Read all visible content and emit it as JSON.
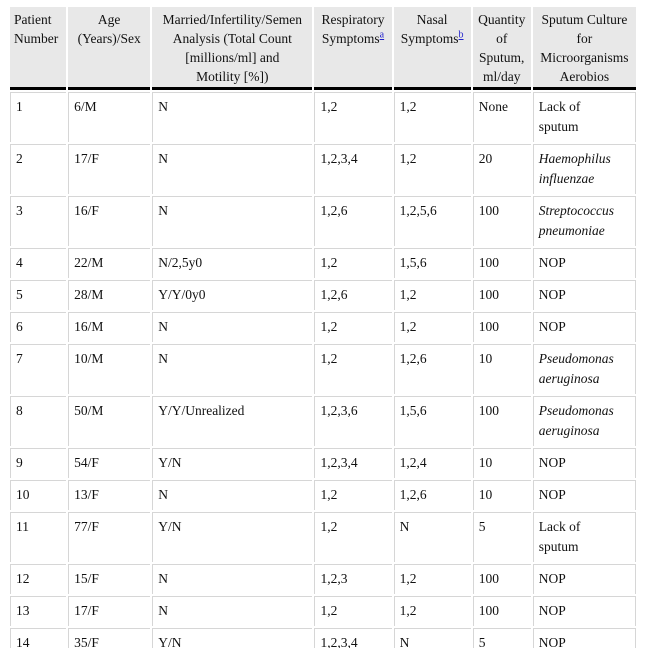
{
  "colors": {
    "header_bg": "#e8e8e8",
    "rule_light": "#d6d6d6",
    "rule_heavy": "#000000",
    "footnote_link_blue": "#2222cc"
  },
  "table": {
    "columns": [
      {
        "key": "patient",
        "label": "Patient\nNumber"
      },
      {
        "key": "age_sex",
        "label": "Age\n(Years)/Sex"
      },
      {
        "key": "married",
        "label": "Married/Infertility/Semen\nAnalysis (Total Count\n[millions/ml] and\nMotility [%])"
      },
      {
        "key": "respiratory",
        "label": "Respiratory\nSymptoms",
        "sup": "a"
      },
      {
        "key": "nasal",
        "label": "Nasal\nSymptoms",
        "sup": "b"
      },
      {
        "key": "quantity",
        "label": "Quantity\nof\nSputum,\nml/day"
      },
      {
        "key": "culture",
        "label": "Sputum Culture\nfor\nMicroorganisms\nAerobios"
      }
    ],
    "rows": [
      {
        "patient": "1",
        "age_sex": "6/M",
        "married": "N",
        "respiratory": "1,2",
        "nasal": "1,2",
        "quantity": "None",
        "culture": "Lack of\nsputum",
        "culture_italic": false
      },
      {
        "patient": "2",
        "age_sex": "17/F",
        "married": "N",
        "respiratory": "1,2,3,4",
        "nasal": "1,2",
        "quantity": "20",
        "culture": "Haemophilus\ninfluenzae",
        "culture_italic": true
      },
      {
        "patient": "3",
        "age_sex": "16/F",
        "married": "N",
        "respiratory": "1,2,6",
        "nasal": "1,2,5,6",
        "quantity": "100",
        "culture": "Streptococcus\npneumoniae",
        "culture_italic": true
      },
      {
        "patient": "4",
        "age_sex": "22/M",
        "married": "N/2,5y0",
        "respiratory": "1,2",
        "nasal": "1,5,6",
        "quantity": "100",
        "culture": "NOP",
        "culture_italic": false
      },
      {
        "patient": "5",
        "age_sex": "28/M",
        "married": "Y/Y/0y0",
        "respiratory": "1,2,6",
        "nasal": "1,2",
        "quantity": "100",
        "culture": "NOP",
        "culture_italic": false
      },
      {
        "patient": "6",
        "age_sex": "16/M",
        "married": "N",
        "respiratory": "1,2",
        "nasal": "1,2",
        "quantity": "100",
        "culture": "NOP",
        "culture_italic": false
      },
      {
        "patient": "7",
        "age_sex": "10/M",
        "married": "N",
        "respiratory": "1,2",
        "nasal": "1,2,6",
        "quantity": "10",
        "culture": "Pseudomonas\naeruginosa",
        "culture_italic": true
      },
      {
        "patient": "8",
        "age_sex": "50/M",
        "married": "Y/Y/Unrealized",
        "respiratory": "1,2,3,6",
        "nasal": "1,5,6",
        "quantity": "100",
        "culture": "Pseudomonas\naeruginosa",
        "culture_italic": true
      },
      {
        "patient": "9",
        "age_sex": "54/F",
        "married": "Y/N",
        "respiratory": "1,2,3,4",
        "nasal": "1,2,4",
        "quantity": "10",
        "culture": "NOP",
        "culture_italic": false
      },
      {
        "patient": "10",
        "age_sex": "13/F",
        "married": "N",
        "respiratory": "1,2",
        "nasal": "1,2,6",
        "quantity": "10",
        "culture": "NOP",
        "culture_italic": false
      },
      {
        "patient": "11",
        "age_sex": "77/F",
        "married": "Y/N",
        "respiratory": "1,2",
        "nasal": "N",
        "quantity": "5",
        "culture": "Lack of\nsputum",
        "culture_italic": false
      },
      {
        "patient": "12",
        "age_sex": "15/F",
        "married": "N",
        "respiratory": "1,2,3",
        "nasal": "1,2",
        "quantity": "100",
        "culture": "NOP",
        "culture_italic": false
      },
      {
        "patient": "13",
        "age_sex": "17/F",
        "married": "N",
        "respiratory": "1,2",
        "nasal": "1,2",
        "quantity": "100",
        "culture": "NOP",
        "culture_italic": false
      },
      {
        "patient": "14",
        "age_sex": "35/F",
        "married": "Y/N",
        "respiratory": "1,2,3,4",
        "nasal": "N",
        "quantity": "5",
        "culture": "NOP",
        "culture_italic": false
      }
    ]
  }
}
